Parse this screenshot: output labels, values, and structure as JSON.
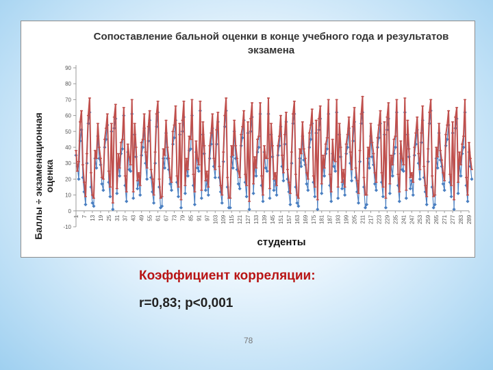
{
  "chart_data": {
    "type": "line",
    "title_line1": "Сопоставление бальной оценки в конце учебного года и результатов",
    "title_line2": "экзамена",
    "xlabel": "студенты",
    "ylabel": "Баллы ÷ экзаменационная оценка",
    "ylim": [
      -10,
      90
    ],
    "yticks": [
      -10,
      0,
      10,
      20,
      30,
      40,
      50,
      60,
      70,
      80,
      90
    ],
    "xlim": [
      1,
      289
    ],
    "xticks": [
      1,
      7,
      13,
      19,
      25,
      31,
      37,
      43,
      49,
      55,
      61,
      67,
      73,
      79,
      85,
      91,
      97,
      103,
      109,
      115,
      121,
      127,
      133,
      139,
      145,
      151,
      157,
      163,
      169,
      175,
      181,
      187,
      193,
      199,
      205,
      211,
      217,
      223,
      229,
      235,
      241,
      247,
      253,
      259,
      265,
      271,
      277,
      283,
      289
    ],
    "grid": false,
    "series": [
      {
        "color": "#4a7fc1",
        "marker": "diamond",
        "values": [
          35,
          28,
          20,
          44,
          51,
          21,
          12,
          4,
          30,
          55,
          62,
          15,
          5,
          3,
          33,
          27,
          47,
          33,
          29,
          17,
          13,
          40,
          45,
          54,
          18,
          9,
          50,
          1,
          52,
          58,
          11,
          30,
          22,
          36,
          39,
          60,
          16,
          6,
          37,
          26,
          25,
          61,
          8,
          48,
          34,
          14,
          19,
          10,
          35,
          40,
          52,
          30,
          20,
          44,
          57,
          21,
          12,
          5,
          30,
          53,
          62,
          15,
          2,
          3,
          33,
          27,
          49,
          33,
          26,
          17,
          13,
          42,
          46,
          57,
          18,
          9,
          48,
          2,
          50,
          59,
          11,
          28,
          22,
          38,
          39,
          60,
          16,
          4,
          37,
          27,
          25,
          63,
          8,
          48,
          36,
          13,
          19,
          10,
          33,
          42,
          52,
          28,
          21,
          42,
          56,
          21,
          12,
          5,
          31,
          53,
          63,
          15,
          2,
          2,
          34,
          27,
          50,
          33,
          26,
          17,
          14,
          41,
          46,
          57,
          18,
          9,
          49,
          1,
          50,
          59,
          11,
          29,
          22,
          37,
          40,
          61,
          16,
          6,
          37,
          27,
          25,
          61,
          8,
          48,
          34,
          13,
          19,
          10,
          35,
          41,
          53,
          28,
          19,
          42,
          56,
          20,
          12,
          4,
          30,
          55,
          61,
          15,
          5,
          3,
          33,
          28,
          47,
          32,
          29,
          17,
          13,
          40,
          45,
          55,
          18,
          9,
          49,
          1,
          51,
          58,
          11,
          30,
          22,
          36,
          39,
          61,
          16,
          6,
          36,
          28,
          25,
          62,
          8,
          48,
          34,
          14,
          19,
          10,
          36,
          40,
          52,
          30,
          19,
          44,
          56,
          21,
          12,
          5,
          31,
          55,
          62,
          15,
          2,
          4,
          33,
          27,
          47,
          34,
          29,
          17,
          13,
          40,
          46,
          55,
          18,
          9,
          48,
          2,
          51,
          58,
          11,
          29,
          22,
          36,
          40,
          62,
          16,
          6,
          36,
          26,
          25,
          62,
          8,
          48,
          34,
          14,
          19,
          10,
          35,
          42,
          51,
          30,
          20,
          43,
          57,
          21,
          12,
          4,
          31,
          55,
          63,
          15,
          2,
          4,
          33,
          27,
          49,
          32,
          28,
          17,
          13,
          41,
          45,
          54,
          18,
          9,
          49,
          1,
          52,
          58,
          11,
          30,
          22,
          36,
          40,
          62,
          16,
          6,
          37,
          28,
          20
        ]
      },
      {
        "color": "#c0504d",
        "marker": "dash",
        "values": [
          38,
          25,
          31,
          56,
          63,
          29,
          18,
          9,
          36,
          60,
          71,
          24,
          10,
          8,
          38,
          33,
          55,
          40,
          33,
          21,
          20,
          45,
          52,
          61,
          25,
          15,
          55,
          5,
          59,
          67,
          14,
          36,
          27,
          43,
          45,
          65,
          22,
          12,
          42,
          34,
          29,
          70,
          12,
          55,
          40,
          19,
          24,
          16,
          43,
          45,
          61,
          37,
          27,
          53,
          63,
          26,
          20,
          10,
          37,
          61,
          69,
          20,
          8,
          9,
          39,
          35,
          57,
          40,
          33,
          21,
          18,
          50,
          54,
          66,
          22,
          15,
          55,
          7,
          57,
          69,
          16,
          33,
          26,
          47,
          45,
          70,
          23,
          12,
          44,
          33,
          29,
          69,
          13,
          56,
          41,
          19,
          25,
          15,
          41,
          49,
          61,
          33,
          26,
          51,
          62,
          28,
          16,
          10,
          37,
          60,
          71,
          21,
          8,
          8,
          41,
          35,
          57,
          41,
          33,
          25,
          21,
          48,
          53,
          63,
          23,
          16,
          56,
          6,
          58,
          68,
          17,
          34,
          27,
          45,
          47,
          68,
          22,
          10,
          41,
          33,
          33,
          71,
          14,
          55,
          41,
          20,
          24,
          16,
          41,
          47,
          60,
          35,
          24,
          48,
          62,
          26,
          18,
          11,
          37,
          61,
          69,
          23,
          10,
          8,
          39,
          36,
          56,
          39,
          33,
          24,
          20,
          49,
          54,
          64,
          22,
          15,
          57,
          7,
          58,
          66,
          17,
          35,
          27,
          42,
          46,
          70,
          23,
          12,
          45,
          32,
          31,
          70,
          15,
          55,
          40,
          18,
          26,
          15,
          42,
          48,
          59,
          37,
          26,
          53,
          65,
          27,
          19,
          11,
          38,
          61,
          72,
          21,
          10,
          10,
          40,
          34,
          55,
          43,
          36,
          24,
          18,
          46,
          54,
          63,
          24,
          15,
          56,
          8,
          59,
          68,
          17,
          35,
          29,
          45,
          47,
          70,
          23,
          12,
          44,
          33,
          29,
          71,
          13,
          57,
          39,
          21,
          24,
          18,
          40,
          49,
          59,
          36,
          26,
          49,
          66,
          28,
          16,
          9,
          39,
          62,
          70,
          22,
          9,
          10,
          40,
          34,
          55,
          38,
          32,
          24,
          19,
          48,
          54,
          63,
          23,
          16,
          56,
          7,
          59,
          65,
          18,
          37,
          29,
          42,
          47,
          70,
          21,
          10,
          43,
          33,
          26
        ]
      }
    ]
  },
  "caption": {
    "heading": "Коэффициент корреляции:",
    "value": "r=0,83; p<0,001"
  },
  "page_number": "78"
}
